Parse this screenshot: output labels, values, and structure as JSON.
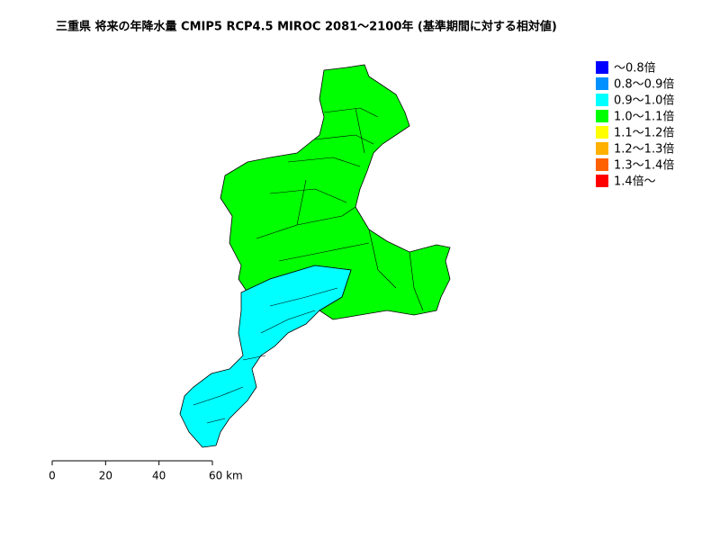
{
  "title": "三重県 将来の年降水量 CMIP5 RCP4.5 MIROC 2081～2100年 (基準期間に対する相対値)",
  "legend": {
    "items": [
      {
        "label": "～0.8倍",
        "color": "#0000ff"
      },
      {
        "label": "0.8～0.9倍",
        "color": "#0090ff"
      },
      {
        "label": "0.9～1.0倍",
        "color": "#00ffff"
      },
      {
        "label": "1.0～1.1倍",
        "color": "#00ff00"
      },
      {
        "label": "1.1～1.2倍",
        "color": "#ffff00"
      },
      {
        "label": "1.2～1.3倍",
        "color": "#ffb000"
      },
      {
        "label": "1.3～1.4倍",
        "color": "#ff6000"
      },
      {
        "label": "1.4倍～",
        "color": "#ff0000"
      }
    ]
  },
  "scale_bar": {
    "ticks": [
      0,
      20,
      40,
      {
        "value": 60,
        "label": "60 km"
      }
    ]
  }
}
